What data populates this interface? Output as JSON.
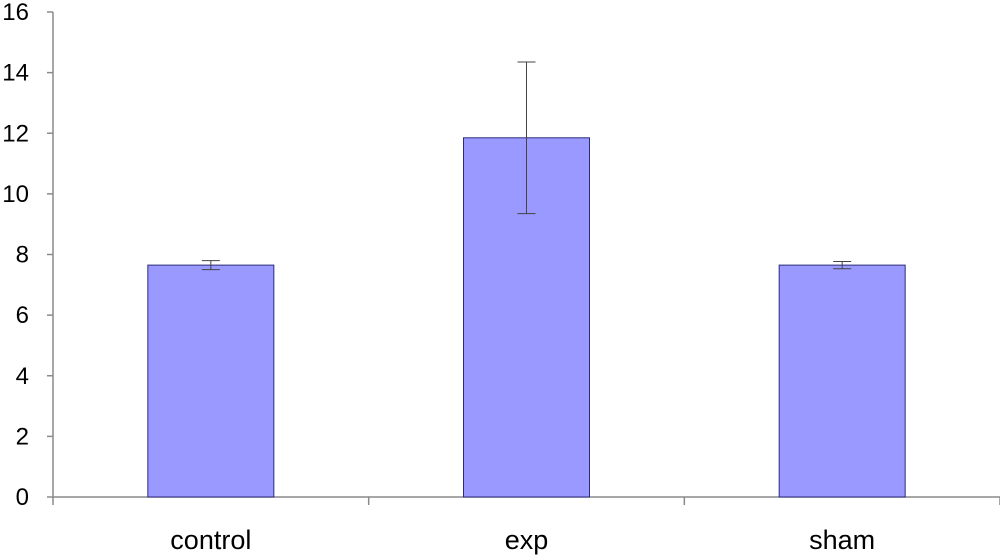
{
  "chart_data": {
    "type": "bar",
    "categories": [
      "control",
      "exp",
      "sham"
    ],
    "values": [
      7.65,
      11.85,
      7.65
    ],
    "errors": [
      0.15,
      2.5,
      0.12
    ],
    "ylim": [
      0,
      16
    ],
    "yticks": [
      "0",
      "2",
      "4",
      "6",
      "8",
      "10",
      "12",
      "14",
      "16"
    ],
    "title": "",
    "xlabel": "",
    "ylabel": "",
    "grid": false,
    "bar_color": "#9999ff",
    "bar_edge_color": "#2b2b7a"
  }
}
